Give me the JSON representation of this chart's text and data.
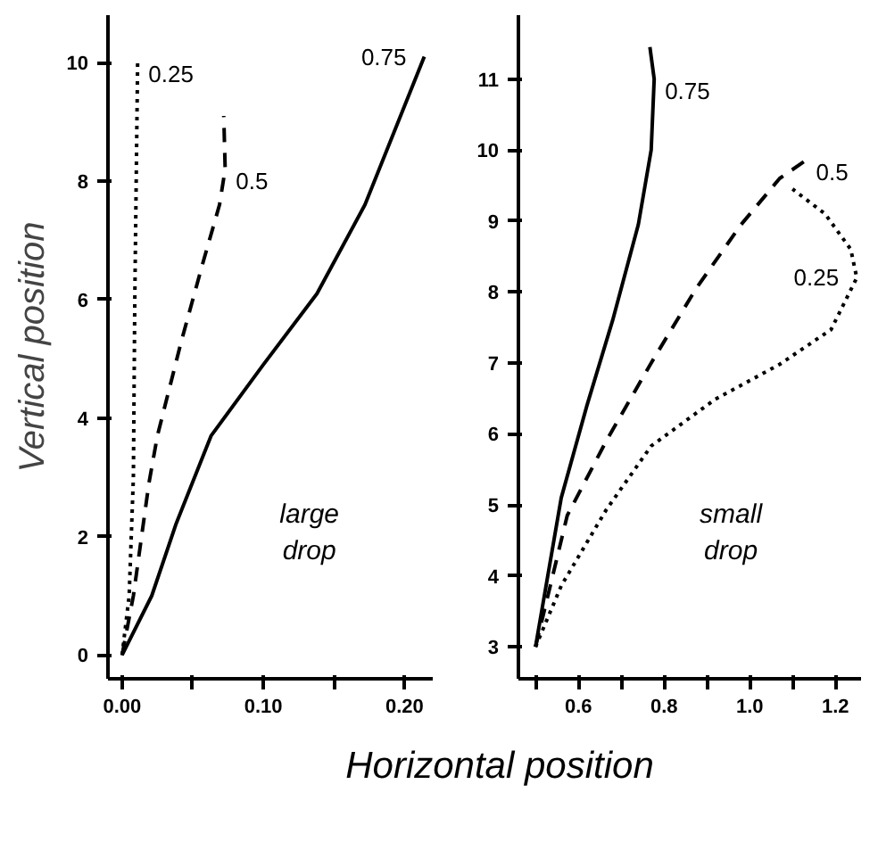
{
  "chart_data": [
    {
      "type": "line",
      "ylabel": "Vertical position",
      "xlabel": "Horizontal position",
      "xlim": [
        -0.01,
        0.22
      ],
      "ylim": [
        -0.4,
        10.8
      ],
      "xticks": [
        {
          "value": 0.0,
          "label": "0.00"
        },
        {
          "value": 0.05,
          "label": null
        },
        {
          "value": 0.1,
          "label": "0.10"
        },
        {
          "value": 0.15,
          "label": null
        },
        {
          "value": 0.2,
          "label": "0.20"
        }
      ],
      "yticks": [
        0,
        2,
        4,
        6,
        8,
        10
      ],
      "grid": false,
      "legend": false,
      "series": [
        {
          "name": "0.25",
          "color": "#000000",
          "line_style": "dotted",
          "x": [
            0,
            0.005,
            0.008,
            0.009,
            0.011
          ],
          "values": [
            0,
            1,
            3,
            6,
            10
          ]
        },
        {
          "name": "0.5",
          "color": "#000000",
          "line_style": "dashed",
          "x": [
            0,
            0.008,
            0.019,
            0.025,
            0.042,
            0.057,
            0.069,
            0.073,
            0.072
          ],
          "values": [
            0,
            1,
            2.9,
            3.7,
            5.3,
            6.6,
            7.6,
            8.2,
            9.1
          ]
        },
        {
          "name": "0.75",
          "color": "#000000",
          "line_style": "solid",
          "x": [
            0,
            0.021,
            0.038,
            0.063,
            0.1,
            0.138,
            0.172,
            0.193,
            0.214
          ],
          "values": [
            0,
            1,
            2.2,
            3.7,
            4.9,
            6.1,
            7.6,
            8.85,
            10.1
          ]
        }
      ],
      "annotations": [
        "large\ndrop"
      ]
    },
    {
      "type": "line",
      "xlim": [
        0.46,
        1.26
      ],
      "ylim": [
        2.55,
        11.9
      ],
      "xticks": [
        {
          "value": 0.5,
          "label": null
        },
        {
          "value": 0.6,
          "label": "0.6"
        },
        {
          "value": 0.7,
          "label": null
        },
        {
          "value": 0.8,
          "label": "0.8"
        },
        {
          "value": 0.9,
          "label": null
        },
        {
          "value": 1.0,
          "label": "1.0"
        },
        {
          "value": 1.1,
          "label": null
        },
        {
          "value": 1.2,
          "label": "1.2"
        }
      ],
      "yticks": [
        3,
        4,
        5,
        6,
        7,
        8,
        9,
        10,
        11
      ],
      "grid": false,
      "legend": false,
      "series": [
        {
          "name": "0.75",
          "color": "#000000",
          "line_style": "solid",
          "x": [
            0.5,
            0.56,
            0.62,
            0.68,
            0.74,
            0.77,
            0.777,
            0.767
          ],
          "values": [
            3.0,
            5.1,
            6.4,
            7.6,
            8.95,
            10.0,
            11.0,
            11.45
          ]
        },
        {
          "name": "0.5",
          "color": "#000000",
          "line_style": "dashed",
          "x": [
            0.5,
            0.574,
            0.665,
            0.77,
            0.875,
            0.98,
            1.07,
            1.13
          ],
          "values": [
            3.0,
            4.85,
            5.9,
            7.0,
            8.05,
            8.95,
            9.6,
            9.85
          ]
        },
        {
          "name": "0.25",
          "color": "#000000",
          "line_style": "dotted",
          "x": [
            0.5,
            0.56,
            0.665,
            0.77,
            0.92,
            1.07,
            1.19,
            1.25,
            1.236,
            1.176,
            1.1
          ],
          "values": [
            3.0,
            3.86,
            4.93,
            5.83,
            6.49,
            6.98,
            7.47,
            8.2,
            8.6,
            9.1,
            9.45
          ]
        }
      ],
      "annotations": [
        "small\ndrop"
      ]
    }
  ]
}
